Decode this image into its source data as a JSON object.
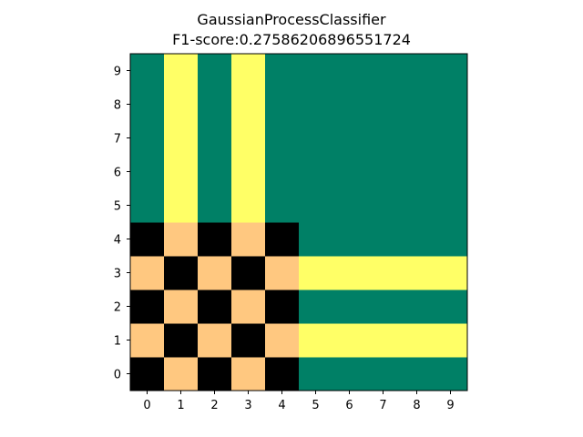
{
  "chart_data": {
    "type": "heatmap",
    "title": "GaussianProcessClassifier",
    "subtitle": "F1-score:0.27586206896551724",
    "xlabel": "",
    "ylabel": "",
    "x_ticks": [
      "0",
      "1",
      "2",
      "3",
      "4",
      "5",
      "6",
      "7",
      "8",
      "9"
    ],
    "y_ticks": [
      "0",
      "1",
      "2",
      "3",
      "4",
      "5",
      "6",
      "7",
      "8",
      "9"
    ],
    "xlim": [
      -0.5,
      9.5
    ],
    "ylim": [
      -0.5,
      9.5
    ],
    "grid": false,
    "colormap": "summer-like with checkerboard overlay",
    "colors": {
      "0": "#000000",
      "1": "#ffc880",
      "2": "#ffff66",
      "3": "#008066"
    },
    "grid_values": [
      [
        0,
        1,
        0,
        1,
        0,
        3,
        3,
        3,
        3,
        3
      ],
      [
        1,
        0,
        1,
        0,
        1,
        2,
        2,
        2,
        2,
        2
      ],
      [
        0,
        1,
        0,
        1,
        0,
        3,
        3,
        3,
        3,
        3
      ],
      [
        1,
        0,
        1,
        0,
        1,
        2,
        2,
        2,
        2,
        2
      ],
      [
        0,
        1,
        0,
        1,
        0,
        3,
        3,
        3,
        3,
        3
      ],
      [
        3,
        2,
        3,
        2,
        3,
        3,
        3,
        3,
        3,
        3
      ],
      [
        3,
        2,
        3,
        2,
        3,
        3,
        3,
        3,
        3,
        3
      ],
      [
        3,
        2,
        3,
        2,
        3,
        3,
        3,
        3,
        3,
        3
      ],
      [
        3,
        2,
        3,
        2,
        3,
        3,
        3,
        3,
        3,
        3
      ],
      [
        3,
        2,
        3,
        2,
        3,
        3,
        3,
        3,
        3,
        3
      ]
    ]
  }
}
